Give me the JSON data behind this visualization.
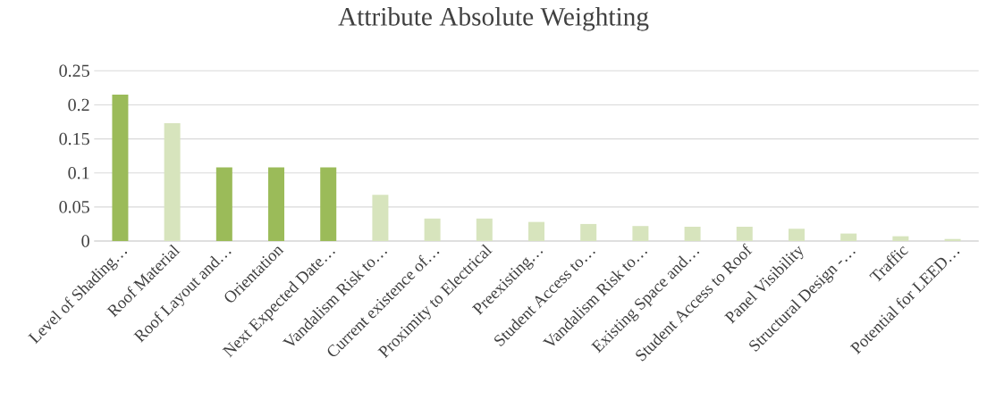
{
  "chart_data": {
    "type": "bar",
    "title": "Attribute Absolute Weighting",
    "categories": [
      "Level of Shading…",
      "Roof Material",
      "Roof Layout and…",
      "Orientation",
      "Next Expected Date…",
      "Vandalism Risk to…",
      "Current existence of…",
      "Proximity to Electrical",
      "Preexisting…",
      "Student Access to…",
      "Vandalism Risk to…",
      "Existing Space and…",
      "Student Access to Roof",
      "Panel Visibility",
      "Structural Design -…",
      "Traffic",
      "Potential for LEED…"
    ],
    "values": [
      0.215,
      0.173,
      0.108,
      0.108,
      0.108,
      0.068,
      0.033,
      0.033,
      0.028,
      0.025,
      0.022,
      0.021,
      0.021,
      0.018,
      0.011,
      0.007,
      0.003
    ],
    "colors": [
      "#9bbb59",
      "#d7e4bd",
      "#9bbb59",
      "#9bbb59",
      "#9bbb59",
      "#d7e4bd",
      "#d7e4bd",
      "#d7e4bd",
      "#d7e4bd",
      "#d7e4bd",
      "#d7e4bd",
      "#d7e4bd",
      "#d7e4bd",
      "#d7e4bd",
      "#d7e4bd",
      "#d7e4bd",
      "#d7e4bd"
    ],
    "ylim": [
      0,
      0.25
    ],
    "yticks": [
      0,
      0.05,
      0.1,
      0.15,
      0.2,
      0.25
    ],
    "grid": "y"
  }
}
